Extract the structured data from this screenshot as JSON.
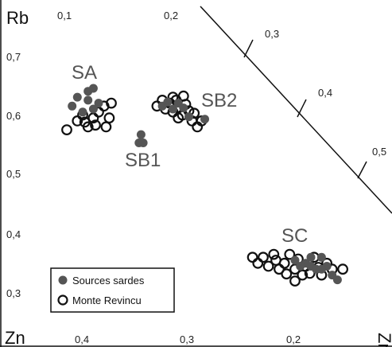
{
  "chart_data": {
    "type": "scatter",
    "title": "",
    "corner_labels": {
      "top_left": "Rb",
      "bottom_left": "Zn",
      "bottom_right": "Zr"
    },
    "left_ticks": [
      "0,7",
      "0,6",
      "0,5",
      "0,4",
      "0,3"
    ],
    "top_ticks": [
      "0,1",
      "0,2"
    ],
    "bottom_ticks": [
      "0,4",
      "0,3",
      "0,2"
    ],
    "diagonal_ticks": [
      "0,3",
      "0,4",
      "0,5"
    ],
    "cluster_labels": [
      "SA",
      "SB1",
      "SB2",
      "SC"
    ],
    "legend": {
      "position": "bottom-left",
      "entries": [
        {
          "name": "Sources sardes",
          "marker": "filled-circle",
          "color": "#555555"
        },
        {
          "name": "Monte Revincu",
          "marker": "open-circle",
          "color": "#111111"
        }
      ]
    },
    "series": [
      {
        "name": "Sources sardes",
        "points": [
          {
            "x": 0.41,
            "y": 0.615
          },
          {
            "x": 0.405,
            "y": 0.63
          },
          {
            "x": 0.395,
            "y": 0.64
          },
          {
            "x": 0.39,
            "y": 0.645
          },
          {
            "x": 0.395,
            "y": 0.625
          },
          {
            "x": 0.39,
            "y": 0.61
          },
          {
            "x": 0.4,
            "y": 0.605
          },
          {
            "x": 0.385,
            "y": 0.62
          },
          {
            "x": 0.345,
            "y": 0.567
          },
          {
            "x": 0.347,
            "y": 0.553
          },
          {
            "x": 0.343,
            "y": 0.553
          },
          {
            "x": 0.315,
            "y": 0.61
          },
          {
            "x": 0.325,
            "y": 0.615
          },
          {
            "x": 0.32,
            "y": 0.622
          },
          {
            "x": 0.31,
            "y": 0.62
          },
          {
            "x": 0.305,
            "y": 0.612
          },
          {
            "x": 0.285,
            "y": 0.593
          },
          {
            "x": 0.3,
            "y": 0.597
          },
          {
            "x": 0.2,
            "y": 0.355
          },
          {
            "x": 0.19,
            "y": 0.35
          },
          {
            "x": 0.185,
            "y": 0.345
          },
          {
            "x": 0.18,
            "y": 0.34
          },
          {
            "x": 0.175,
            "y": 0.36
          },
          {
            "x": 0.17,
            "y": 0.345
          },
          {
            "x": 0.165,
            "y": 0.33
          },
          {
            "x": 0.16,
            "y": 0.322
          },
          {
            "x": 0.175,
            "y": 0.34
          },
          {
            "x": 0.185,
            "y": 0.36
          },
          {
            "x": 0.195,
            "y": 0.345
          }
        ]
      },
      {
        "name": "Monte Revincu",
        "points": [
          {
            "x": 0.415,
            "y": 0.575
          },
          {
            "x": 0.405,
            "y": 0.59
          },
          {
            "x": 0.4,
            "y": 0.6
          },
          {
            "x": 0.395,
            "y": 0.58
          },
          {
            "x": 0.39,
            "y": 0.595
          },
          {
            "x": 0.385,
            "y": 0.605
          },
          {
            "x": 0.38,
            "y": 0.615
          },
          {
            "x": 0.378,
            "y": 0.58
          },
          {
            "x": 0.375,
            "y": 0.595
          },
          {
            "x": 0.373,
            "y": 0.62
          },
          {
            "x": 0.398,
            "y": 0.588
          },
          {
            "x": 0.388,
            "y": 0.583
          },
          {
            "x": 0.33,
            "y": 0.615
          },
          {
            "x": 0.325,
            "y": 0.625
          },
          {
            "x": 0.322,
            "y": 0.61
          },
          {
            "x": 0.318,
            "y": 0.62
          },
          {
            "x": 0.315,
            "y": 0.605
          },
          {
            "x": 0.312,
            "y": 0.625
          },
          {
            "x": 0.31,
            "y": 0.612
          },
          {
            "x": 0.306,
            "y": 0.6
          },
          {
            "x": 0.303,
            "y": 0.618
          },
          {
            "x": 0.3,
            "y": 0.607
          },
          {
            "x": 0.297,
            "y": 0.59
          },
          {
            "x": 0.295,
            "y": 0.603
          },
          {
            "x": 0.292,
            "y": 0.58
          },
          {
            "x": 0.288,
            "y": 0.59
          },
          {
            "x": 0.305,
            "y": 0.632
          },
          {
            "x": 0.315,
            "y": 0.63
          },
          {
            "x": 0.31,
            "y": 0.595
          },
          {
            "x": 0.24,
            "y": 0.36
          },
          {
            "x": 0.235,
            "y": 0.35
          },
          {
            "x": 0.23,
            "y": 0.36
          },
          {
            "x": 0.225,
            "y": 0.345
          },
          {
            "x": 0.22,
            "y": 0.365
          },
          {
            "x": 0.218,
            "y": 0.355
          },
          {
            "x": 0.215,
            "y": 0.34
          },
          {
            "x": 0.21,
            "y": 0.35
          },
          {
            "x": 0.205,
            "y": 0.365
          },
          {
            "x": 0.2,
            "y": 0.34
          },
          {
            "x": 0.197,
            "y": 0.357
          },
          {
            "x": 0.193,
            "y": 0.33
          },
          {
            "x": 0.19,
            "y": 0.345
          },
          {
            "x": 0.186,
            "y": 0.333
          },
          {
            "x": 0.182,
            "y": 0.36
          },
          {
            "x": 0.178,
            "y": 0.343
          },
          {
            "x": 0.175,
            "y": 0.33
          },
          {
            "x": 0.17,
            "y": 0.35
          },
          {
            "x": 0.165,
            "y": 0.34
          },
          {
            "x": 0.155,
            "y": 0.34
          },
          {
            "x": 0.208,
            "y": 0.332
          },
          {
            "x": 0.2,
            "y": 0.32
          }
        ]
      }
    ]
  }
}
